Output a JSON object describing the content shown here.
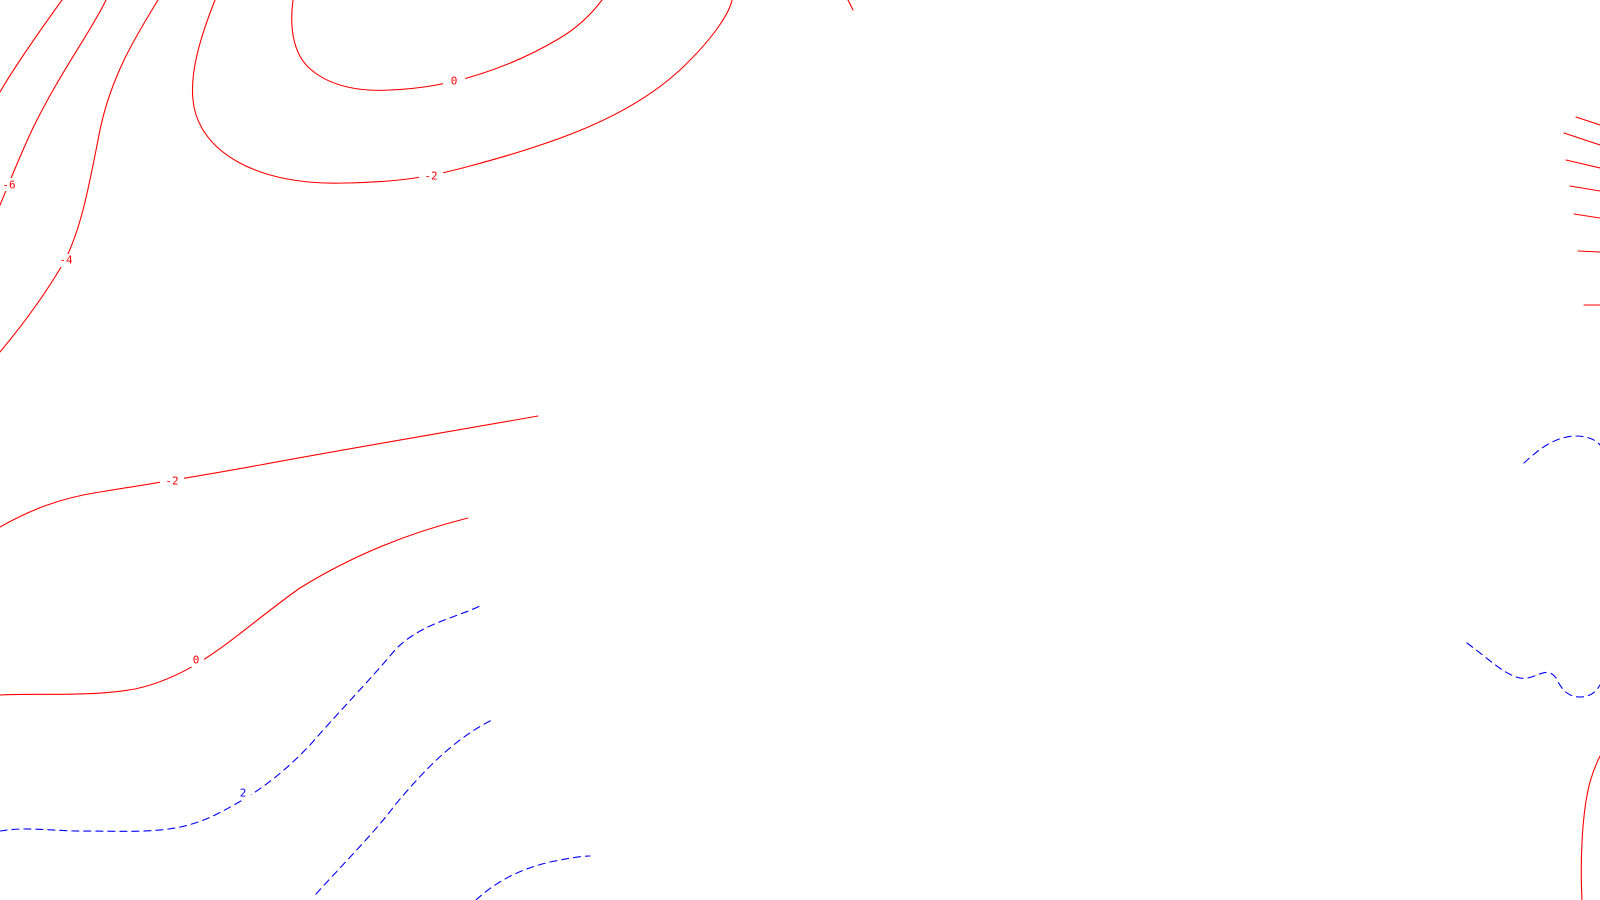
{
  "map": {
    "colors": {
      "positive_contour": "#ff0000",
      "negative_contour": "#0000ff",
      "background": "#ffffff"
    },
    "contour_labels": [
      {
        "id": "upper-zero",
        "text": "0",
        "style": "solid"
      },
      {
        "id": "upper-minus-2",
        "text": "-2",
        "style": "solid"
      },
      {
        "id": "left-minus-6",
        "text": "-6",
        "style": "solid"
      },
      {
        "id": "left-minus-4",
        "text": "-4",
        "style": "solid"
      },
      {
        "id": "middle-minus-2",
        "text": "-2",
        "style": "solid"
      },
      {
        "id": "lower-zero",
        "text": "0",
        "style": "solid"
      },
      {
        "id": "lower-dashed-2",
        "text": "2",
        "style": "dashed"
      }
    ]
  }
}
